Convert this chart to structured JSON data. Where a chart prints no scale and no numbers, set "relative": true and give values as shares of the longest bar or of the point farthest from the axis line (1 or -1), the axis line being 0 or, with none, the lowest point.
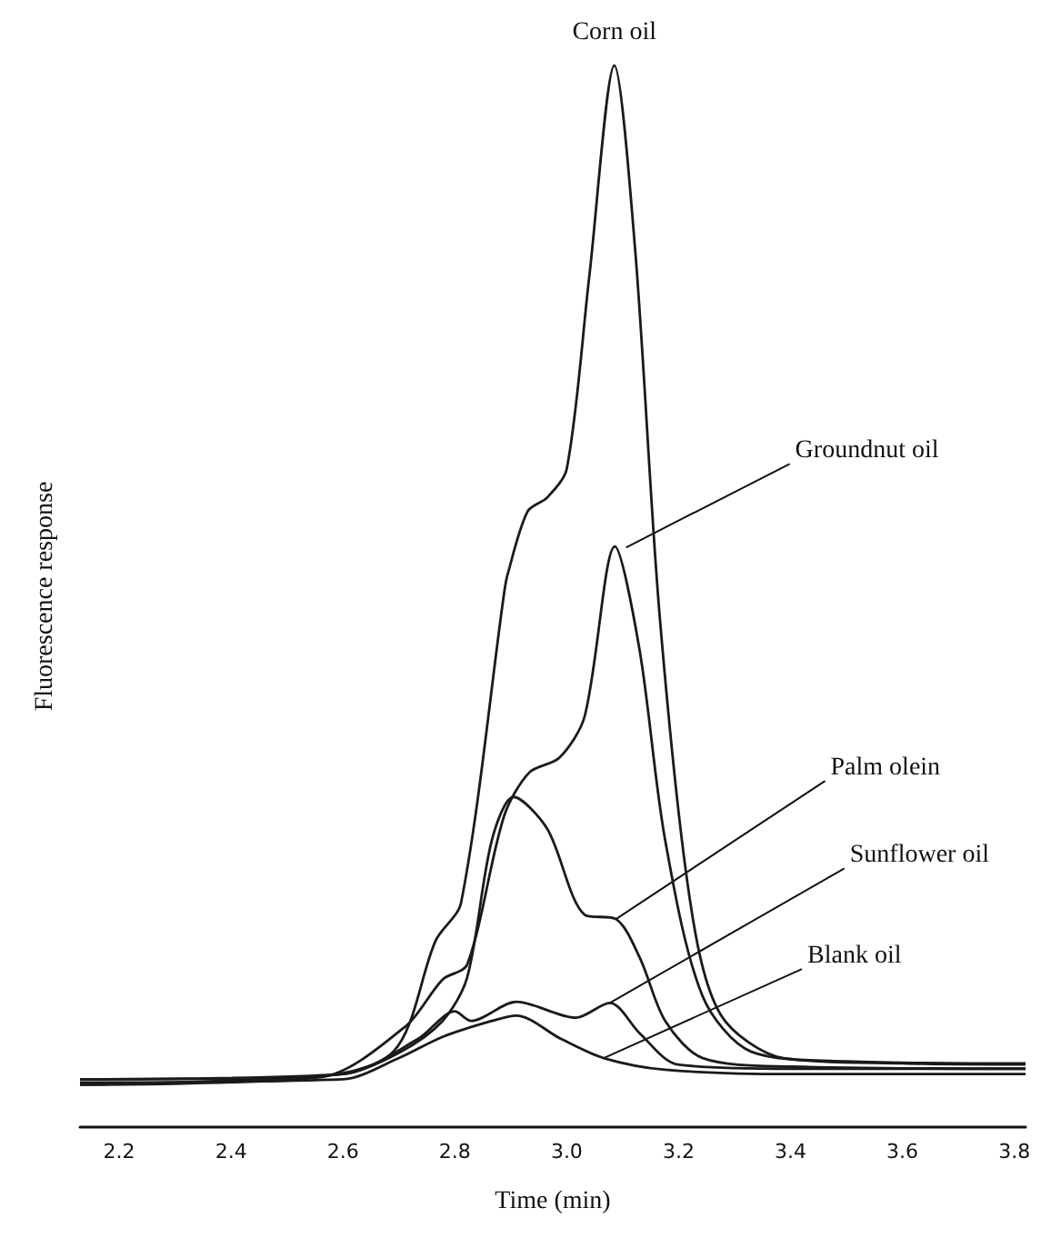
{
  "chart_data": {
    "type": "line",
    "relative": true,
    "xlabel": "Time (min)",
    "ylabel": "Fluorescence response",
    "xlim": [
      2.13,
      3.82
    ],
    "xticks": [
      2.2,
      2.4,
      2.6,
      2.8,
      {
        "value": 3,
        "label": "3.0"
      },
      3.2,
      3.4,
      3.6,
      3.8
    ],
    "grid": false,
    "marker": "none",
    "line_style": "solid",
    "series": [
      {
        "color": "#1a1a1a",
        "x": [
          2.13,
          2.534,
          2.69,
          2.766,
          2.811,
          2.888,
          2.894,
          2.93,
          2.965,
          3.0,
          3.04,
          3.085,
          3.122,
          3.166,
          3.221,
          3.275,
          3.387,
          3.6,
          3.82
        ],
        "values": [
          0.045,
          0.047,
          0.071,
          0.176,
          0.211,
          0.503,
          0.52,
          0.58,
          0.593,
          0.62,
          0.8,
          1.0,
          0.828,
          0.482,
          0.211,
          0.106,
          0.065,
          0.06,
          0.059
        ]
      },
      {
        "color": "#1a1a1a",
        "x": [
          2.13,
          2.56,
          2.712,
          2.778,
          2.822,
          2.888,
          2.933,
          2.987,
          3.032,
          3.086,
          3.13,
          3.176,
          3.243,
          3.33,
          3.5,
          3.82
        ],
        "values": [
          0.04,
          0.047,
          0.095,
          0.139,
          0.153,
          0.293,
          0.334,
          0.348,
          0.387,
          0.547,
          0.45,
          0.27,
          0.123,
          0.071,
          0.062,
          0.06
        ]
      },
      {
        "color": "#1a1a1a",
        "x": [
          2.13,
          2.6,
          2.7,
          2.778,
          2.822,
          2.866,
          2.905,
          2.965,
          3.032,
          3.088,
          3.131,
          3.176,
          3.243,
          3.4,
          3.82
        ],
        "values": [
          0.04,
          0.05,
          0.07,
          0.1,
          0.141,
          0.27,
          0.311,
          0.281,
          0.2,
          0.196,
          0.159,
          0.1,
          0.065,
          0.057,
          0.055
        ]
      },
      {
        "color": "#1a1a1a",
        "x": [
          2.13,
          2.6,
          2.734,
          2.8,
          2.829,
          2.91,
          3.016,
          3.077,
          3.131,
          3.198,
          3.4,
          3.82
        ],
        "values": [
          0.045,
          0.05,
          0.083,
          0.109,
          0.1,
          0.118,
          0.103,
          0.117,
          0.088,
          0.059,
          0.055,
          0.055
        ]
      },
      {
        "color": "#1a1a1a",
        "x": [
          2.13,
          2.6,
          2.7,
          2.778,
          2.866,
          2.91,
          2.99,
          3.066,
          3.176,
          3.4,
          3.82
        ],
        "values": [
          0.042,
          0.045,
          0.065,
          0.085,
          0.1,
          0.105,
          0.083,
          0.065,
          0.054,
          0.05,
          0.05
        ]
      }
    ],
    "annotations": [
      {
        "text": "Corn oil",
        "x": 3.085,
        "y": 1.0
      },
      {
        "text": "Groundnut oil",
        "x": 3.106,
        "y": 0.546
      },
      {
        "text": "Palm olein",
        "x": 3.088,
        "y": 0.196
      },
      {
        "text": "Sunflower oil",
        "x": 3.077,
        "y": 0.117
      },
      {
        "text": "Blank oil",
        "x": 3.066,
        "y": 0.065
      }
    ]
  }
}
